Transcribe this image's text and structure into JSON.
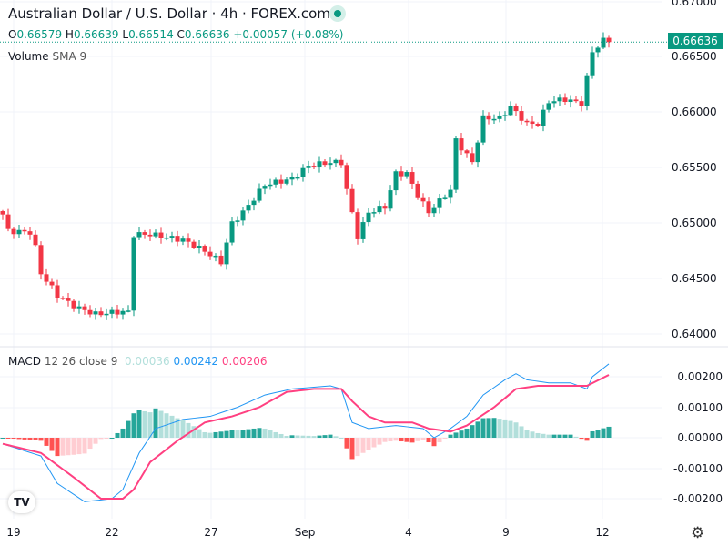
{
  "header": {
    "title": "Australian Dollar / U.S. Dollar · 4h · FOREX.com",
    "o_label": "O",
    "open": "0.66579",
    "h_label": "H",
    "high": "0.66639",
    "l_label": "L",
    "low": "0.66514",
    "c_label": "C",
    "close": "0.66636",
    "change": "+0.00057 (+0.08%)"
  },
  "volume": {
    "label": "Volume",
    "sub": "SMA 9"
  },
  "macd": {
    "label": "MACD",
    "params": "12 26 close 9",
    "hist": "0.00036",
    "macd": "0.00242",
    "signal": "0.00206"
  },
  "price_tag": "0.66636",
  "price_axis": [
    "0.67000",
    "0.66500",
    "0.66000",
    "0.65500",
    "0.65000",
    "0.64500",
    "0.64000"
  ],
  "macd_axis": [
    "0.00200",
    "0.00100",
    "0.00000",
    "-0.00100",
    "-0.00200"
  ],
  "time_axis": [
    "19",
    "22",
    "27",
    "Sep",
    "4",
    "9",
    "12"
  ],
  "colors": {
    "up": "#089981",
    "down": "#f23645",
    "macd": "#2196f3",
    "signal": "#ff4081",
    "hist_up_strong": "#26a69a",
    "hist_up_weak": "#b2dfdb",
    "hist_down_strong": "#ff5252",
    "hist_down_weak": "#ffcdd2"
  },
  "chart_data": {
    "type": "candlestick",
    "price_path": [
      [
        0,
        0.6508
      ],
      [
        1,
        0.6493
      ],
      [
        5,
        0.6492
      ],
      [
        6,
        0.6478
      ],
      [
        7,
        0.6455
      ],
      [
        10,
        0.6435
      ],
      [
        13,
        0.6425
      ],
      [
        17,
        0.6418
      ],
      [
        21,
        0.642
      ],
      [
        23,
        0.642
      ],
      [
        24,
        0.649
      ],
      [
        27,
        0.649
      ],
      [
        33,
        0.6485
      ],
      [
        37,
        0.6475
      ],
      [
        40,
        0.6465
      ],
      [
        42,
        0.65
      ],
      [
        44,
        0.651
      ],
      [
        48,
        0.6535
      ],
      [
        53,
        0.654
      ],
      [
        56,
        0.6552
      ],
      [
        60,
        0.6555
      ],
      [
        62,
        0.6555
      ],
      [
        63,
        0.653
      ],
      [
        65,
        0.6488
      ],
      [
        67,
        0.651
      ],
      [
        70,
        0.6515
      ],
      [
        72,
        0.6545
      ],
      [
        74,
        0.6545
      ],
      [
        76,
        0.6525
      ],
      [
        78,
        0.651
      ],
      [
        82,
        0.653
      ],
      [
        83,
        0.6575
      ],
      [
        86,
        0.6555
      ],
      [
        88,
        0.6595
      ],
      [
        91,
        0.6595
      ],
      [
        93,
        0.6605
      ],
      [
        96,
        0.659
      ],
      [
        98,
        0.659
      ],
      [
        100,
        0.661
      ],
      [
        103,
        0.6612
      ],
      [
        106,
        0.6608
      ],
      [
        108,
        0.6655
      ],
      [
        110,
        0.6665
      ],
      [
        111,
        0.66636
      ]
    ],
    "macd_path": [
      [
        0,
        -0.0002
      ],
      [
        7,
        -0.0006
      ],
      [
        10,
        -0.0015
      ],
      [
        15,
        -0.0021
      ],
      [
        20,
        -0.002
      ],
      [
        22,
        -0.0017
      ],
      [
        25,
        -0.0005
      ],
      [
        28,
        0.0003
      ],
      [
        33,
        0.0006
      ],
      [
        38,
        0.0007
      ],
      [
        43,
        0.001
      ],
      [
        48,
        0.0014
      ],
      [
        53,
        0.0016
      ],
      [
        60,
        0.0017
      ],
      [
        62,
        0.0016
      ],
      [
        64,
        0.0005
      ],
      [
        67,
        0.0003
      ],
      [
        72,
        0.0004
      ],
      [
        77,
        0.0003
      ],
      [
        79,
        0.0
      ],
      [
        82,
        0.0003
      ],
      [
        85,
        0.0007
      ],
      [
        88,
        0.0014
      ],
      [
        92,
        0.0019
      ],
      [
        94,
        0.0021
      ],
      [
        96,
        0.0019
      ],
      [
        100,
        0.0018
      ],
      [
        104,
        0.0018
      ],
      [
        107,
        0.0016
      ],
      [
        108,
        0.002
      ],
      [
        111,
        0.00242
      ]
    ],
    "signal_path": [
      [
        0,
        -0.0002
      ],
      [
        7,
        -0.0005
      ],
      [
        13,
        -0.0013
      ],
      [
        18,
        -0.002
      ],
      [
        22,
        -0.002
      ],
      [
        24,
        -0.0017
      ],
      [
        27,
        -0.0008
      ],
      [
        32,
        -0.0001
      ],
      [
        37,
        0.0005
      ],
      [
        42,
        0.0007
      ],
      [
        47,
        0.001
      ],
      [
        52,
        0.0015
      ],
      [
        57,
        0.0016
      ],
      [
        62,
        0.0016
      ],
      [
        64,
        0.0012
      ],
      [
        67,
        0.0007
      ],
      [
        70,
        0.0005
      ],
      [
        75,
        0.0005
      ],
      [
        78,
        0.0003
      ],
      [
        82,
        0.0002
      ],
      [
        85,
        0.0004
      ],
      [
        90,
        0.001
      ],
      [
        94,
        0.0016
      ],
      [
        98,
        0.0017
      ],
      [
        103,
        0.0017
      ],
      [
        107,
        0.0017
      ],
      [
        111,
        0.00206
      ]
    ],
    "price_range": [
      0.6395,
      0.6701
    ],
    "macd_range": [
      -0.0024,
      0.0026
    ]
  }
}
